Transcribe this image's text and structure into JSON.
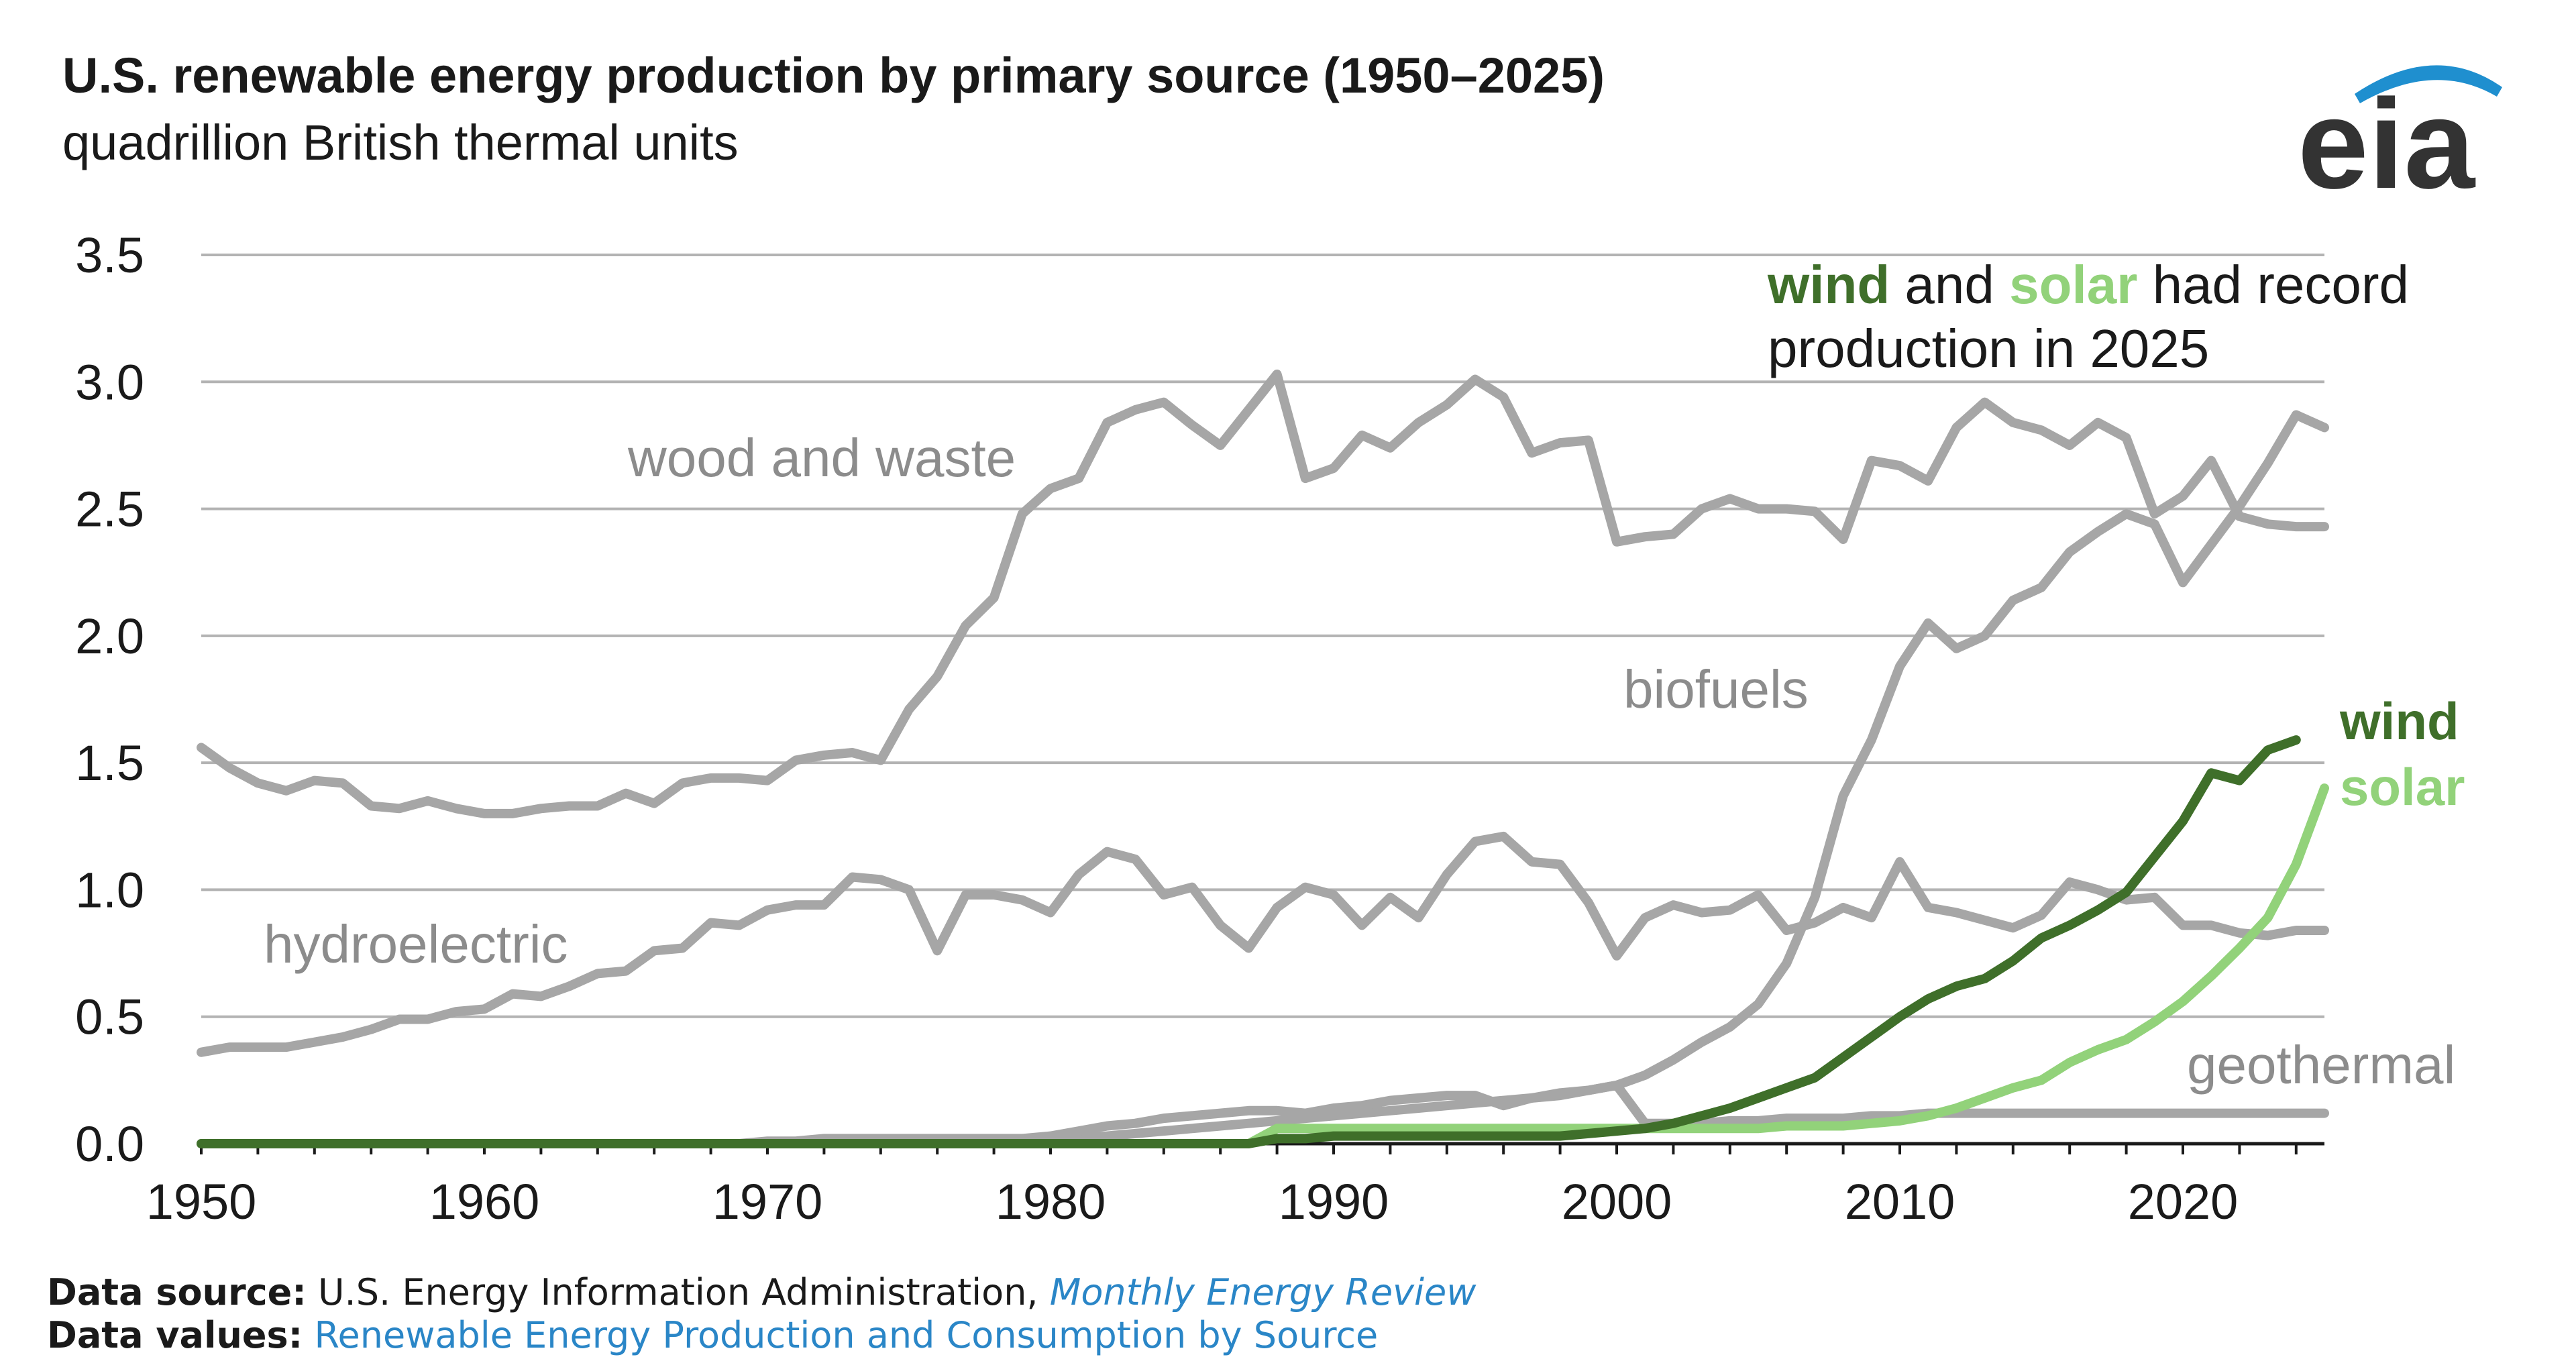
{
  "header": {
    "title": "U.S. renewable energy production by primary source (1950–2025)",
    "subtitle": "quadrillion British thermal units"
  },
  "logo": {
    "text": "eia",
    "arc_color": "#1f8fcf",
    "text_color": "#333333"
  },
  "annotation": {
    "wind_word": "wind",
    "and_word": " and ",
    "solar_word": "solar",
    "rest_line1": " had record",
    "line2": "production in 2025"
  },
  "footer": {
    "source_label": "Data source:",
    "source_text": " U.S. Energy Information Administration, ",
    "source_link": "Monthly Energy Review",
    "values_label": "Data values:",
    "values_link": "Renewable Energy Production and Consumption by Source"
  },
  "colors": {
    "grey": "#a6a6a6",
    "grey_label": "#8c8c8c",
    "wind": "#3f6f2a",
    "solar": "#92d27a",
    "grid": "#b3b3b3",
    "axis": "#1a1a1a",
    "link": "#2a86c7"
  },
  "chart_data": {
    "type": "line",
    "title": "U.S. renewable energy production by primary source (1950–2025)",
    "ylabel": "quadrillion British thermal units",
    "xlim": [
      1950,
      2025
    ],
    "ylim": [
      0,
      3.5
    ],
    "xticks": [
      1950,
      1960,
      1970,
      1980,
      1990,
      2000,
      2010,
      2020
    ],
    "yticks": [
      0.0,
      0.5,
      1.0,
      1.5,
      2.0,
      2.5,
      3.0,
      3.5
    ],
    "ytick_labels": [
      "0.0",
      "0.5",
      "1.0",
      "1.5",
      "2.0",
      "2.5",
      "3.0",
      "3.5"
    ],
    "grid": "horizontal",
    "x_start": 1950,
    "series": [
      {
        "name": "wood and waste",
        "values": [
          1.56,
          1.48,
          1.42,
          1.39,
          1.43,
          1.42,
          1.33,
          1.32,
          1.35,
          1.32,
          1.3,
          1.3,
          1.32,
          1.33,
          1.33,
          1.38,
          1.34,
          1.42,
          1.44,
          1.44,
          1.43,
          1.51,
          1.53,
          1.54,
          1.51,
          1.71,
          1.84,
          2.04,
          2.15,
          2.48,
          2.58,
          2.62,
          2.84,
          2.89,
          2.92,
          2.83,
          2.75,
          2.89,
          3.03,
          2.62,
          2.66,
          2.79,
          2.74,
          2.84,
          2.91,
          3.01,
          2.94,
          2.72,
          2.76,
          2.77,
          2.37,
          2.39,
          2.4,
          2.5,
          2.54,
          2.5,
          2.5,
          2.49,
          2.38,
          2.69,
          2.67,
          2.61,
          2.82,
          2.92,
          2.84,
          2.81,
          2.75,
          2.84,
          2.78,
          2.48,
          2.55,
          2.69,
          2.47,
          2.44,
          2.43,
          2.43
        ]
      },
      {
        "name": "hydroelectric",
        "values": [
          0.36,
          0.38,
          0.38,
          0.38,
          0.4,
          0.42,
          0.45,
          0.49,
          0.49,
          0.52,
          0.53,
          0.59,
          0.58,
          0.62,
          0.67,
          0.68,
          0.76,
          0.77,
          0.87,
          0.86,
          0.92,
          0.94,
          0.94,
          1.05,
          1.04,
          1.0,
          0.76,
          0.98,
          0.98,
          0.96,
          0.91,
          1.06,
          1.15,
          1.12,
          0.98,
          1.01,
          0.86,
          0.77,
          0.93,
          1.01,
          0.98,
          0.86,
          0.97,
          0.89,
          1.06,
          1.19,
          1.21,
          1.11,
          1.1,
          0.95,
          0.74,
          0.89,
          0.94,
          0.91,
          0.92,
          0.98,
          0.84,
          0.87,
          0.93,
          0.89,
          1.11,
          0.93,
          0.91,
          0.88,
          0.85,
          0.9,
          1.03,
          1.0,
          0.96,
          0.97,
          0.86,
          0.86,
          0.83,
          0.82,
          0.84,
          0.84
        ]
      },
      {
        "name": "biofuels",
        "values": [
          0,
          0,
          0,
          0,
          0,
          0,
          0,
          0,
          0,
          0,
          0,
          0,
          0,
          0,
          0,
          0,
          0,
          0,
          0,
          0,
          0,
          0,
          0,
          0,
          0,
          0,
          0,
          0,
          0,
          0,
          0.01,
          0.02,
          0.03,
          0.04,
          0.05,
          0.06,
          0.07,
          0.08,
          0.09,
          0.1,
          0.11,
          0.12,
          0.13,
          0.14,
          0.15,
          0.16,
          0.17,
          0.18,
          0.19,
          0.21,
          0.23,
          0.27,
          0.33,
          0.4,
          0.46,
          0.55,
          0.71,
          0.97,
          1.37,
          1.59,
          1.88,
          2.05,
          1.95,
          2.0,
          2.14,
          2.19,
          2.33,
          2.41,
          2.48,
          2.44,
          2.21,
          2.36,
          2.51,
          2.68,
          2.87,
          2.82
        ]
      },
      {
        "name": "geothermal",
        "values": [
          0,
          0,
          0,
          0,
          0,
          0,
          0,
          0,
          0,
          0,
          0,
          0,
          0,
          0,
          0,
          0,
          0,
          0,
          0,
          0,
          0.01,
          0.01,
          0.02,
          0.02,
          0.02,
          0.02,
          0.02,
          0.02,
          0.02,
          0.02,
          0.03,
          0.05,
          0.07,
          0.08,
          0.1,
          0.11,
          0.12,
          0.13,
          0.13,
          0.12,
          0.14,
          0.15,
          0.17,
          0.18,
          0.19,
          0.19,
          0.15,
          0.18,
          0.2,
          0.21,
          0.23,
          0.08,
          0.08,
          0.08,
          0.09,
          0.09,
          0.1,
          0.1,
          0.1,
          0.11,
          0.11,
          0.12,
          0.12,
          0.12,
          0.12,
          0.12,
          0.12,
          0.12,
          0.12,
          0.12,
          0.12,
          0.12,
          0.12,
          0.12,
          0.12,
          0.12
        ]
      },
      {
        "name": "solar",
        "values": [
          0,
          0,
          0,
          0,
          0,
          0,
          0,
          0,
          0,
          0,
          0,
          0,
          0,
          0,
          0,
          0,
          0,
          0,
          0,
          0,
          0,
          0,
          0,
          0,
          0,
          0,
          0,
          0,
          0,
          0,
          0,
          0,
          0,
          0,
          0,
          0,
          0,
          0,
          0.06,
          0.06,
          0.06,
          0.06,
          0.06,
          0.06,
          0.06,
          0.06,
          0.06,
          0.06,
          0.06,
          0.06,
          0.06,
          0.06,
          0.06,
          0.06,
          0.06,
          0.06,
          0.07,
          0.07,
          0.07,
          0.08,
          0.09,
          0.11,
          0.14,
          0.18,
          0.22,
          0.25,
          0.32,
          0.37,
          0.41,
          0.48,
          0.56,
          0.66,
          0.77,
          0.89,
          1.1,
          1.4
        ]
      },
      {
        "name": "wind",
        "values": [
          0,
          0,
          0,
          0,
          0,
          0,
          0,
          0,
          0,
          0,
          0,
          0,
          0,
          0,
          0,
          0,
          0,
          0,
          0,
          0,
          0,
          0,
          0,
          0,
          0,
          0,
          0,
          0,
          0,
          0,
          0,
          0,
          0,
          0,
          0,
          0,
          0,
          0,
          0.02,
          0.02,
          0.03,
          0.03,
          0.03,
          0.03,
          0.03,
          0.03,
          0.03,
          0.03,
          0.03,
          0.04,
          0.05,
          0.06,
          0.08,
          0.11,
          0.14,
          0.18,
          0.22,
          0.26,
          0.34,
          0.42,
          0.5,
          0.57,
          0.62,
          0.65,
          0.72,
          0.81,
          0.86,
          0.92,
          0.99,
          1.13,
          1.27,
          1.46,
          1.43,
          1.55,
          1.59
        ]
      }
    ],
    "series_labels": {
      "wood and waste": "wood and waste",
      "hydroelectric": "hydroelectric",
      "biofuels": "biofuels",
      "geothermal": "geothermal",
      "wind": "wind",
      "solar": "solar"
    }
  }
}
